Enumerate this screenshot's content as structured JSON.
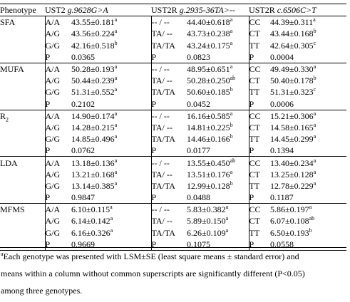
{
  "headers": {
    "phenotype": "Phenotype",
    "gene1": "UST2",
    "variant1": "g.9628G>A",
    "gene2": "UST2R",
    "variant2": "g.2935-36TA>--",
    "gene3": "UST2R",
    "variant3": "c.6506C>T"
  },
  "traits": [
    {
      "name": "SFA",
      "rows": [
        {
          "g1": "A/A",
          "v1": "43.55±0.181",
          "s1": "a",
          "g2": "-- / --",
          "v2": "44.40±0.618",
          "s2": "a",
          "g3": "CC",
          "v3": "44.39±0.311",
          "s3": "a"
        },
        {
          "g1": "A/G",
          "v1": "43.56±0.224",
          "s1": "a",
          "g2": "TA/ --",
          "v2": "43.73±0.238",
          "s2": "a",
          "g3": "CT",
          "v3": "43.44±0.168",
          "s3": "b"
        },
        {
          "g1": "G/G",
          "v1": "42.16±0.518",
          "s1": "b",
          "g2": "TA/TA",
          "v2": "43.24±0.175",
          "s2": "a",
          "g3": "TT",
          "v3": "42.64±0.305",
          "s3": "c"
        },
        {
          "g1": "P",
          "v1": "0.0365",
          "s1": "",
          "g2": "P",
          "v2": "0.0823",
          "s2": "",
          "g3": "P",
          "v3": "0.0004",
          "s3": ""
        }
      ]
    },
    {
      "name": "MUFA",
      "rows": [
        {
          "g1": "A/A",
          "v1": "50.28±0.193",
          "s1": "a",
          "g2": "-- / --",
          "v2": "48.95±0.651",
          "s2": "a",
          "g3": "CC",
          "v3": "49.49±0.330",
          "s3": "a"
        },
        {
          "g1": "A/G",
          "v1": "50.44±0.239",
          "s1": "a",
          "g2": "TA/ --",
          "v2": "50.28±0.250",
          "s2": "ab",
          "g3": "CT",
          "v3": "50.40±0.178",
          "s3": "b"
        },
        {
          "g1": "G/G",
          "v1": "51.31±0.552",
          "s1": "a",
          "g2": "TA/TA",
          "v2": "50.60±0.185",
          "s2": "b",
          "g3": "TT",
          "v3": "51.31±0.323",
          "s3": "c"
        },
        {
          "g1": "P",
          "v1": "0.2102",
          "s1": "",
          "g2": "P",
          "v2": "0.0452",
          "s2": "",
          "g3": "P",
          "v3": "0.0006",
          "s3": ""
        }
      ]
    },
    {
      "name": "R",
      "name_sub": "2",
      "rows": [
        {
          "g1": "A/A",
          "v1": "14.90±0.174",
          "s1": "a",
          "g2": "-- / --",
          "v2": "16.16±0.585",
          "s2": "a",
          "g3": "CC",
          "v3": "15.21±0.306",
          "s3": "a"
        },
        {
          "g1": "A/G",
          "v1": "14.28±0.215",
          "s1": "a",
          "g2": "TA/ --",
          "v2": "14.81±0.225",
          "s2": "b",
          "g3": "CT",
          "v3": "14.58±0.165",
          "s3": "a"
        },
        {
          "g1": "G/G",
          "v1": "14.85±0.496",
          "s1": "a",
          "g2": "TA/TA",
          "v2": "14.46±0.166",
          "s2": "b",
          "g3": "TT",
          "v3": "14.45±0.299",
          "s3": "a"
        },
        {
          "g1": "P",
          "v1": "0.0762",
          "s1": "",
          "g2": "P",
          "v2": "0.0177",
          "s2": "",
          "g3": "P",
          "v3": "0.1394",
          "s3": ""
        }
      ]
    },
    {
      "name": "LDA",
      "rows": [
        {
          "g1": "A/A",
          "v1": "13.18±0.136",
          "s1": "a",
          "g2": "-- / --",
          "v2": "13.55±0.450",
          "s2": "ab",
          "g3": "CC",
          "v3": "13.40±0.234",
          "s3": "a"
        },
        {
          "g1": "A/G",
          "v1": "13.21±0.168",
          "s1": "a",
          "g2": "TA/ --",
          "v2": "13.51±0.176",
          "s2": "a",
          "g3": "CT",
          "v3": "13.25±0.128",
          "s3": "a"
        },
        {
          "g1": "G/G",
          "v1": "13.14±0.385",
          "s1": "a",
          "g2": "TA/TA",
          "v2": "12.99±0.128",
          "s2": "b",
          "g3": "TT",
          "v3": "12.78±0.229",
          "s3": "a"
        },
        {
          "g1": "P",
          "v1": "0.9847",
          "s1": "",
          "g2": "P",
          "v2": "0.0488",
          "s2": "",
          "g3": "P",
          "v3": "0.1187",
          "s3": ""
        }
      ]
    },
    {
      "name": "MFMS",
      "rows": [
        {
          "g1": "A/A",
          "v1": "6.10±0.115",
          "s1": "a",
          "g2": "-- / --",
          "v2": "5.83±0.382",
          "s2": "a",
          "g3": "CC",
          "v3": "5.86±0.197",
          "s3": "a"
        },
        {
          "g1": "A/G",
          "v1": "6.14±0.142",
          "s1": "a",
          "g2": "TA/ --",
          "v2": "5.89±0.150",
          "s2": "a",
          "g3": "CT",
          "v3": "6.07±0.108",
          "s3": "ab"
        },
        {
          "g1": "G/G",
          "v1": "6.16±0.326",
          "s1": "a",
          "g2": "TA/TA",
          "v2": "6.26±0.109",
          "s2": "a",
          "g3": "TT",
          "v3": "6.50±0.193",
          "s3": "b"
        },
        {
          "g1": "P",
          "v1": "0.9669",
          "s1": "",
          "g2": "P",
          "v2": "0.1075",
          "s2": "",
          "g3": "P",
          "v3": "0.0558",
          "s3": ""
        }
      ]
    }
  ],
  "footnote": {
    "marker": "a",
    "line1": "Each genotype was presented with LSM±SE (least square means ± standard error) and",
    "line2": "means within a column without common superscripts are significantly different (P<0.05)",
    "line3": "among three genotypes."
  }
}
